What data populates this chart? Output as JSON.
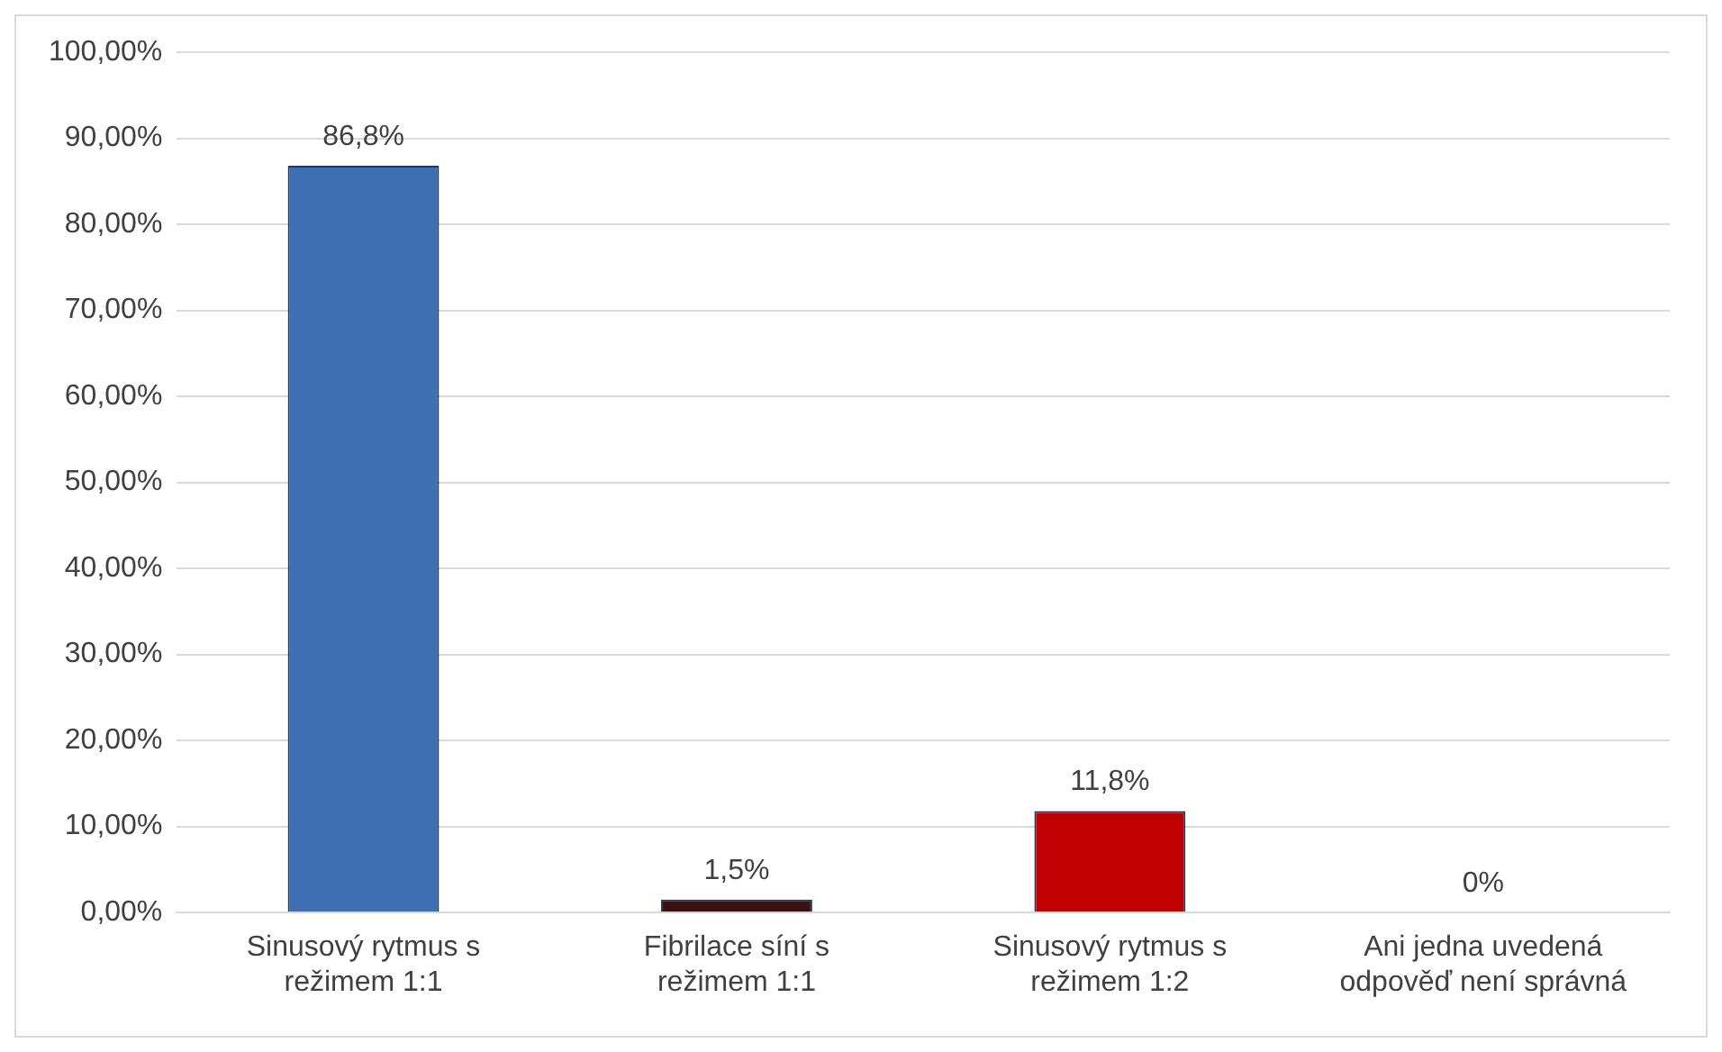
{
  "chart_data": {
    "type": "bar",
    "categories": [
      "Sinusový rytmus s režimem 1:1",
      "Fibrilace síní s režimem 1:1",
      "Sinusový rytmus s režimem 1:2",
      "Ani jedna uvedená odpověď není správná"
    ],
    "values": [
      86.8,
      1.5,
      11.8,
      0
    ],
    "colors": [
      "#3e6fb0",
      "#3a1010",
      "#c00000",
      "#4f81bd"
    ],
    "value_labels": [
      "86,8%",
      "1,5%",
      "11,8%",
      "0%"
    ],
    "ylim": [
      0,
      100
    ],
    "yticks": [
      {
        "value": 0,
        "label": "0,00%"
      },
      {
        "value": 10,
        "label": "10,00%"
      },
      {
        "value": 20,
        "label": "20,00%"
      },
      {
        "value": 30,
        "label": "30,00%"
      },
      {
        "value": 40,
        "label": "40,00%"
      },
      {
        "value": 50,
        "label": "50,00%"
      },
      {
        "value": 60,
        "label": "60,00%"
      },
      {
        "value": 70,
        "label": "70,00%"
      },
      {
        "value": 80,
        "label": "80,00%"
      },
      {
        "value": 90,
        "label": "90,00%"
      },
      {
        "value": 100,
        "label": "100,00%"
      }
    ],
    "grid": "y",
    "legend": false
  }
}
